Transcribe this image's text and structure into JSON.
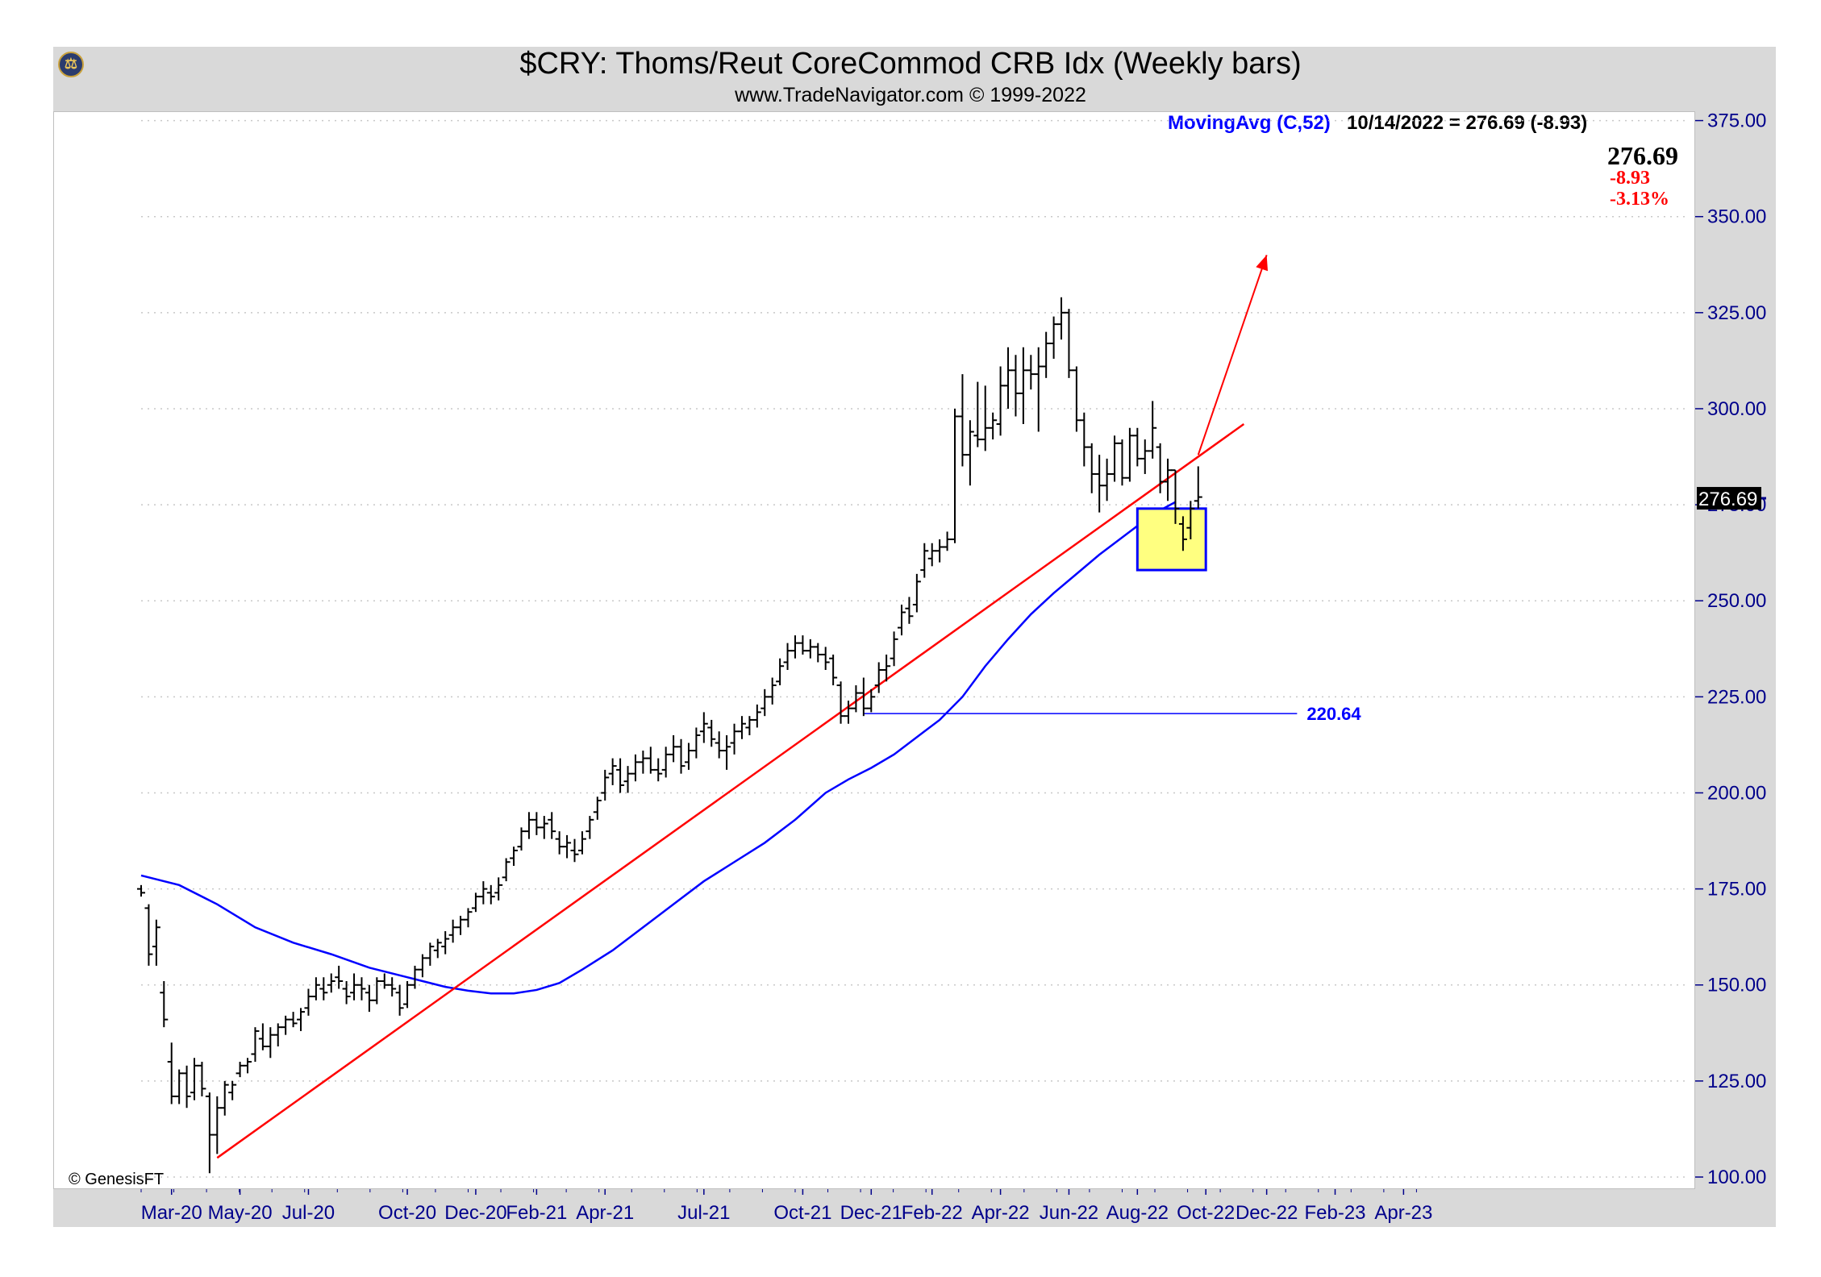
{
  "header": {
    "title": "$CRY:  Thoms/Reut CoreCommod CRB Idx  (Weekly bars)",
    "subtitle": "www.TradeNavigator.com © 1999-2022",
    "logo_icon": "scales-logo-icon"
  },
  "indicator": {
    "label": "MovingAvg (C,52)",
    "value_text": "10/14/2022 = 276.69 (-8.93)"
  },
  "last_quote": {
    "price": "276.69",
    "change": "-8.93",
    "percent": "-3.13%",
    "axis_tag": "276.69"
  },
  "copyright": "© GenesisFT",
  "colors": {
    "bars": "#000000",
    "moving_average": "#0000ff",
    "trendline": "#ff0000",
    "arrow": "#ff0000",
    "highlight_fill": "#ffff80",
    "highlight_border": "#0000ff",
    "support_line": "#0000ff",
    "axis_text": "#00008b"
  },
  "chart_data": {
    "type": "bar",
    "subtype": "OHLC weekly bars",
    "title": "$CRY:  Thoms/Reut CoreCommod CRB Idx  (Weekly bars)",
    "y_axis_side": "right",
    "ylim": [
      100,
      375
    ],
    "yticks": [
      "100.00",
      "125.00",
      "150.00",
      "175.00",
      "200.00",
      "225.00",
      "250.00",
      "275.00",
      "300.00",
      "325.00",
      "350.00",
      "375.00"
    ],
    "ytick_values": [
      100,
      125,
      150,
      175,
      200,
      225,
      250,
      275,
      300,
      325,
      350,
      375
    ],
    "xticks": [
      "Mar-20",
      "May-20",
      "Jul-20",
      "Oct-20",
      "Dec-20",
      "Feb-21",
      "Apr-21",
      "Jul-21",
      "Oct-21",
      "Dec-21",
      "Feb-22",
      "Apr-22",
      "Jun-22",
      "Aug-22",
      "Oct-22",
      "Dec-22",
      "Feb-23",
      "Apr-23"
    ],
    "xtick_weeks": [
      4,
      13,
      22,
      35,
      44,
      52,
      61,
      74,
      87,
      96,
      104,
      113,
      122,
      131,
      140,
      148,
      157,
      166
    ],
    "x_weeks_total": 170,
    "grid": "horizontal dotted",
    "bars": [
      {
        "o": 175,
        "h": 176,
        "l": 173,
        "c": 174
      },
      {
        "o": 170,
        "h": 171,
        "l": 155,
        "c": 158
      },
      {
        "o": 160,
        "h": 167,
        "l": 155,
        "c": 165
      },
      {
        "o": 148,
        "h": 151,
        "l": 139,
        "c": 141
      },
      {
        "o": 130,
        "h": 135,
        "l": 119,
        "c": 121
      },
      {
        "o": 121,
        "h": 128,
        "l": 119,
        "c": 127
      },
      {
        "o": 127,
        "h": 129,
        "l": 118,
        "c": 121
      },
      {
        "o": 122,
        "h": 131,
        "l": 120,
        "c": 129
      },
      {
        "o": 129,
        "h": 130,
        "l": 121,
        "c": 123
      },
      {
        "o": 121,
        "h": 122,
        "l": 101,
        "c": 111
      },
      {
        "o": 111,
        "h": 121,
        "l": 106,
        "c": 118
      },
      {
        "o": 118,
        "h": 125,
        "l": 116,
        "c": 124
      },
      {
        "o": 122,
        "h": 125,
        "l": 120,
        "c": 124
      },
      {
        "o": 127,
        "h": 130,
        "l": 126,
        "c": 129
      },
      {
        "o": 129,
        "h": 131,
        "l": 127,
        "c": 130
      },
      {
        "o": 132,
        "h": 139,
        "l": 130,
        "c": 138
      },
      {
        "o": 136,
        "h": 140,
        "l": 133,
        "c": 134
      },
      {
        "o": 134,
        "h": 139,
        "l": 131,
        "c": 137
      },
      {
        "o": 137,
        "h": 140,
        "l": 134,
        "c": 139
      },
      {
        "o": 139,
        "h": 142,
        "l": 137,
        "c": 141
      },
      {
        "o": 141,
        "h": 143,
        "l": 139,
        "c": 140
      },
      {
        "o": 141,
        "h": 144,
        "l": 138,
        "c": 143
      },
      {
        "o": 144,
        "h": 149,
        "l": 142,
        "c": 147
      },
      {
        "o": 147,
        "h": 152,
        "l": 146,
        "c": 150
      },
      {
        "o": 149,
        "h": 152,
        "l": 146,
        "c": 148
      },
      {
        "o": 150,
        "h": 153,
        "l": 148,
        "c": 151
      },
      {
        "o": 152,
        "h": 155,
        "l": 149,
        "c": 151
      },
      {
        "o": 149,
        "h": 151,
        "l": 145,
        "c": 147
      },
      {
        "o": 148,
        "h": 153,
        "l": 146,
        "c": 150
      },
      {
        "o": 150,
        "h": 152,
        "l": 146,
        "c": 149
      },
      {
        "o": 148,
        "h": 150,
        "l": 143,
        "c": 146
      },
      {
        "o": 146,
        "h": 152,
        "l": 145,
        "c": 151
      },
      {
        "o": 151,
        "h": 153,
        "l": 149,
        "c": 150
      },
      {
        "o": 150,
        "h": 152,
        "l": 147,
        "c": 149
      },
      {
        "o": 148,
        "h": 150,
        "l": 142,
        "c": 144
      },
      {
        "o": 145,
        "h": 151,
        "l": 144,
        "c": 150
      },
      {
        "o": 150,
        "h": 155,
        "l": 149,
        "c": 154
      },
      {
        "o": 154,
        "h": 158,
        "l": 152,
        "c": 157
      },
      {
        "o": 157,
        "h": 161,
        "l": 155,
        "c": 160
      },
      {
        "o": 159,
        "h": 162,
        "l": 157,
        "c": 161
      },
      {
        "o": 160,
        "h": 164,
        "l": 158,
        "c": 162
      },
      {
        "o": 163,
        "h": 167,
        "l": 161,
        "c": 165
      },
      {
        "o": 165,
        "h": 168,
        "l": 163,
        "c": 167
      },
      {
        "o": 167,
        "h": 170,
        "l": 165,
        "c": 169
      },
      {
        "o": 170,
        "h": 174,
        "l": 169,
        "c": 173
      },
      {
        "o": 173,
        "h": 177,
        "l": 171,
        "c": 175
      },
      {
        "o": 174,
        "h": 176,
        "l": 171,
        "c": 173
      },
      {
        "o": 174,
        "h": 178,
        "l": 172,
        "c": 176
      },
      {
        "o": 178,
        "h": 183,
        "l": 177,
        "c": 182
      },
      {
        "o": 183,
        "h": 186,
        "l": 181,
        "c": 185
      },
      {
        "o": 186,
        "h": 191,
        "l": 185,
        "c": 190
      },
      {
        "o": 190,
        "h": 195,
        "l": 188,
        "c": 193
      },
      {
        "o": 193,
        "h": 195,
        "l": 189,
        "c": 191
      },
      {
        "o": 191,
        "h": 194,
        "l": 188,
        "c": 192
      },
      {
        "o": 193,
        "h": 195,
        "l": 188,
        "c": 190
      },
      {
        "o": 188,
        "h": 190,
        "l": 184,
        "c": 186
      },
      {
        "o": 186,
        "h": 189,
        "l": 183,
        "c": 187
      },
      {
        "o": 185,
        "h": 188,
        "l": 182,
        "c": 184
      },
      {
        "o": 185,
        "h": 190,
        "l": 184,
        "c": 188
      },
      {
        "o": 190,
        "h": 194,
        "l": 188,
        "c": 193
      },
      {
        "o": 195,
        "h": 199,
        "l": 193,
        "c": 198
      },
      {
        "o": 200,
        "h": 206,
        "l": 198,
        "c": 204
      },
      {
        "o": 205,
        "h": 209,
        "l": 202,
        "c": 207
      },
      {
        "o": 206,
        "h": 209,
        "l": 200,
        "c": 202
      },
      {
        "o": 203,
        "h": 207,
        "l": 200,
        "c": 205
      },
      {
        "o": 205,
        "h": 210,
        "l": 203,
        "c": 208
      },
      {
        "o": 208,
        "h": 211,
        "l": 205,
        "c": 209
      },
      {
        "o": 209,
        "h": 212,
        "l": 205,
        "c": 206
      },
      {
        "o": 206,
        "h": 209,
        "l": 203,
        "c": 205
      },
      {
        "o": 206,
        "h": 212,
        "l": 204,
        "c": 210
      },
      {
        "o": 210,
        "h": 215,
        "l": 208,
        "c": 212
      },
      {
        "o": 212,
        "h": 214,
        "l": 205,
        "c": 207
      },
      {
        "o": 208,
        "h": 213,
        "l": 206,
        "c": 211
      },
      {
        "o": 211,
        "h": 217,
        "l": 209,
        "c": 215
      },
      {
        "o": 216,
        "h": 221,
        "l": 213,
        "c": 218
      },
      {
        "o": 217,
        "h": 219,
        "l": 212,
        "c": 214
      },
      {
        "o": 213,
        "h": 216,
        "l": 209,
        "c": 211
      },
      {
        "o": 211,
        "h": 215,
        "l": 206,
        "c": 212
      },
      {
        "o": 213,
        "h": 218,
        "l": 210,
        "c": 216
      },
      {
        "o": 216,
        "h": 220,
        "l": 214,
        "c": 218
      },
      {
        "o": 217,
        "h": 220,
        "l": 215,
        "c": 219
      },
      {
        "o": 219,
        "h": 223,
        "l": 217,
        "c": 221
      },
      {
        "o": 222,
        "h": 227,
        "l": 220,
        "c": 225
      },
      {
        "o": 225,
        "h": 230,
        "l": 223,
        "c": 228
      },
      {
        "o": 229,
        "h": 235,
        "l": 228,
        "c": 233
      },
      {
        "o": 234,
        "h": 239,
        "l": 232,
        "c": 237
      },
      {
        "o": 237,
        "h": 241,
        "l": 235,
        "c": 239
      },
      {
        "o": 239,
        "h": 241,
        "l": 236,
        "c": 237
      },
      {
        "o": 237,
        "h": 240,
        "l": 235,
        "c": 238
      },
      {
        "o": 238,
        "h": 239,
        "l": 234,
        "c": 236
      },
      {
        "o": 236,
        "h": 238,
        "l": 232,
        "c": 234
      },
      {
        "o": 235,
        "h": 236,
        "l": 228,
        "c": 230
      },
      {
        "o": 228,
        "h": 229,
        "l": 218,
        "c": 220
      },
      {
        "o": 220,
        "h": 224,
        "l": 218,
        "c": 222
      },
      {
        "o": 222,
        "h": 228,
        "l": 221,
        "c": 226
      },
      {
        "o": 226,
        "h": 230,
        "l": 220,
        "c": 222
      },
      {
        "o": 222,
        "h": 227,
        "l": 221,
        "c": 225
      },
      {
        "o": 228,
        "h": 234,
        "l": 226,
        "c": 232
      },
      {
        "o": 232,
        "h": 236,
        "l": 229,
        "c": 233
      },
      {
        "o": 235,
        "h": 242,
        "l": 233,
        "c": 240
      },
      {
        "o": 243,
        "h": 249,
        "l": 241,
        "c": 247
      },
      {
        "o": 248,
        "h": 251,
        "l": 244,
        "c": 246
      },
      {
        "o": 249,
        "h": 257,
        "l": 247,
        "c": 255
      },
      {
        "o": 258,
        "h": 265,
        "l": 256,
        "c": 263
      },
      {
        "o": 261,
        "h": 265,
        "l": 259,
        "c": 263
      },
      {
        "o": 263,
        "h": 266,
        "l": 260,
        "c": 264
      },
      {
        "o": 264,
        "h": 268,
        "l": 263,
        "c": 266
      },
      {
        "o": 266,
        "h": 300,
        "l": 265,
        "c": 298
      },
      {
        "o": 298,
        "h": 309,
        "l": 285,
        "c": 288
      },
      {
        "o": 288,
        "h": 297,
        "l": 280,
        "c": 294
      },
      {
        "o": 293,
        "h": 307,
        "l": 290,
        "c": 292
      },
      {
        "o": 292,
        "h": 306,
        "l": 289,
        "c": 295
      },
      {
        "o": 295,
        "h": 299,
        "l": 292,
        "c": 297
      },
      {
        "o": 296,
        "h": 311,
        "l": 293,
        "c": 306
      },
      {
        "o": 306,
        "h": 316,
        "l": 300,
        "c": 310
      },
      {
        "o": 310,
        "h": 314,
        "l": 298,
        "c": 304
      },
      {
        "o": 304,
        "h": 316,
        "l": 296,
        "c": 310
      },
      {
        "o": 310,
        "h": 314,
        "l": 305,
        "c": 309
      },
      {
        "o": 309,
        "h": 316,
        "l": 294,
        "c": 311
      },
      {
        "o": 311,
        "h": 320,
        "l": 308,
        "c": 317
      },
      {
        "o": 317,
        "h": 324,
        "l": 313,
        "c": 322
      },
      {
        "o": 322,
        "h": 329,
        "l": 318,
        "c": 325
      },
      {
        "o": 325,
        "h": 326,
        "l": 308,
        "c": 310
      },
      {
        "o": 310,
        "h": 311,
        "l": 294,
        "c": 297
      },
      {
        "o": 297,
        "h": 299,
        "l": 285,
        "c": 290
      },
      {
        "o": 290,
        "h": 291,
        "l": 278,
        "c": 283
      },
      {
        "o": 283,
        "h": 288,
        "l": 273,
        "c": 280
      },
      {
        "o": 280,
        "h": 287,
        "l": 276,
        "c": 283
      },
      {
        "o": 283,
        "h": 293,
        "l": 281,
        "c": 291
      },
      {
        "o": 291,
        "h": 292,
        "l": 280,
        "c": 282
      },
      {
        "o": 282,
        "h": 295,
        "l": 281,
        "c": 293
      },
      {
        "o": 293,
        "h": 295,
        "l": 285,
        "c": 287
      },
      {
        "o": 287,
        "h": 292,
        "l": 283,
        "c": 289
      },
      {
        "o": 289,
        "h": 302,
        "l": 287,
        "c": 295
      },
      {
        "o": 290,
        "h": 291,
        "l": 278,
        "c": 281
      },
      {
        "o": 281,
        "h": 287,
        "l": 276,
        "c": 284
      },
      {
        "o": 284,
        "h": 284,
        "l": 270,
        "c": 274
      },
      {
        "o": 270,
        "h": 272,
        "l": 263,
        "c": 266
      },
      {
        "o": 269,
        "h": 276,
        "l": 266,
        "c": 274
      },
      {
        "o": 276,
        "h": 285,
        "l": 274,
        "c": 277
      }
    ],
    "moving_average": {
      "name": "MovingAvg (C,52)",
      "start_week": 0,
      "points": [
        [
          0,
          178.5
        ],
        [
          5,
          176
        ],
        [
          10,
          171
        ],
        [
          15,
          165
        ],
        [
          20,
          161
        ],
        [
          25,
          158
        ],
        [
          30,
          154.5
        ],
        [
          35,
          152
        ],
        [
          40,
          149.5
        ],
        [
          43,
          148.5
        ],
        [
          46,
          147.8
        ],
        [
          49,
          147.8
        ],
        [
          52,
          148.7
        ],
        [
          55,
          150.5
        ],
        [
          58,
          154
        ],
        [
          62,
          159
        ],
        [
          66,
          165
        ],
        [
          70,
          171
        ],
        [
          74,
          177
        ],
        [
          78,
          182
        ],
        [
          82,
          187
        ],
        [
          86,
          193
        ],
        [
          90,
          200
        ],
        [
          93,
          203.5
        ],
        [
          96,
          206.5
        ],
        [
          99,
          210
        ],
        [
          102,
          214.5
        ],
        [
          105,
          219
        ],
        [
          108,
          225
        ],
        [
          111,
          233
        ],
        [
          114,
          240
        ],
        [
          117,
          246.5
        ],
        [
          120,
          252
        ],
        [
          123,
          257
        ],
        [
          126,
          262
        ],
        [
          130,
          268
        ],
        [
          133,
          272.5
        ],
        [
          136,
          275.7
        ]
      ]
    },
    "trendline": {
      "from": {
        "week": 10,
        "value": 105
      },
      "to": {
        "week": 145,
        "value": 296
      }
    },
    "projection_arrow": {
      "from": {
        "week": 139,
        "value": 288
      },
      "to": {
        "week": 148,
        "value": 340
      }
    },
    "highlight_box": {
      "week_start": 131,
      "week_end": 140,
      "value_low": 258,
      "value_high": 274
    },
    "support_line": {
      "value": 220.64,
      "label": "220.64",
      "week_start": 95,
      "week_end": 152
    }
  }
}
